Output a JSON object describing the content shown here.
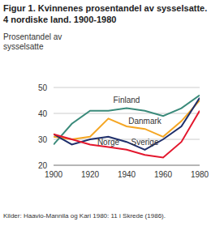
{
  "chart_data": {
    "type": "line",
    "title": "Figur 1. Kvinnenes prosentandel av sysselsatte. 4 nordiske land. 1900-1980",
    "y_label": "Prosentandel av sysselsatte",
    "source": "Kilder: Haavio-Mannila og Kari 1980: 11 i Skrede (1986).",
    "x": [
      1900,
      1910,
      1920,
      1930,
      1940,
      1950,
      1960,
      1970,
      1980
    ],
    "series": [
      {
        "name": "Finland",
        "color": "#3a8a7a",
        "values": [
          28,
          36,
          41,
          41,
          42,
          41,
          39,
          42,
          47
        ]
      },
      {
        "name": "Danmark",
        "color": "#f5a623",
        "values": [
          31,
          30,
          31,
          38,
          35,
          34,
          31,
          37,
          45
        ]
      },
      {
        "name": "Sverige",
        "color": "#1f2f6b",
        "values": [
          32,
          28,
          30,
          31,
          29,
          26,
          30,
          35,
          46
        ]
      },
      {
        "name": "Norge",
        "color": "#e3172d",
        "values": [
          32,
          30,
          28,
          27,
          26,
          24,
          23,
          29,
          41
        ]
      }
    ],
    "xlim": [
      1900,
      1980
    ],
    "xticks": [
      1900,
      1920,
      1940,
      1960,
      1980
    ],
    "ylim": [
      20,
      50
    ],
    "yticks": [
      20,
      30,
      40,
      50
    ],
    "grid": true
  }
}
